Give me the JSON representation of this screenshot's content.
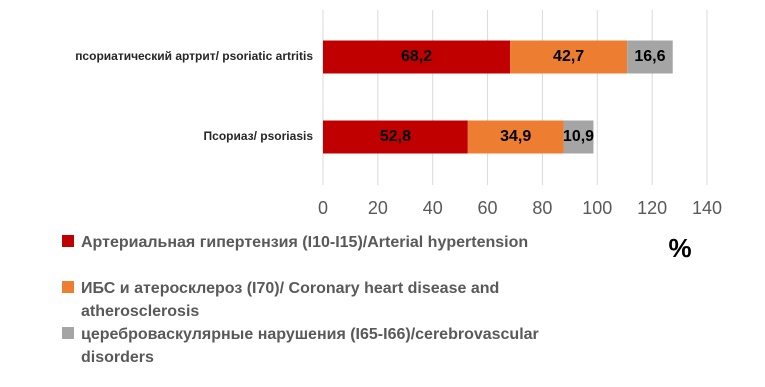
{
  "chart_data": {
    "type": "stacked_bar_horizontal",
    "categories": [
      "псориатический артрит/ psoriatic artritis",
      "Псориаз/ psoriasis"
    ],
    "series": [
      {
        "name": "Артериальная гипертензия (I10-I15)/Arterial hypertension",
        "color": "#c00000",
        "values": [
          68.2,
          52.8
        ],
        "value_labels": [
          "68,2",
          "52,8"
        ]
      },
      {
        "name": "ИБС и атеросклероз (I70)/ Coronary heart disease and atherosclerosis",
        "color": "#ed7d31",
        "values": [
          42.7,
          34.9
        ],
        "value_labels": [
          "42,7",
          "34,9"
        ]
      },
      {
        "name": "цереброваскулярные нарушения (I65-I66)/cerebrovascular disorders",
        "color": "#a5a5a5",
        "values": [
          16.6,
          10.9
        ],
        "value_labels": [
          "16,6",
          "10,9"
        ]
      }
    ],
    "xlabel": "%",
    "xlim": [
      0,
      140
    ],
    "xticks": [
      0,
      20,
      40,
      60,
      80,
      100,
      120,
      140
    ],
    "grid": true
  }
}
